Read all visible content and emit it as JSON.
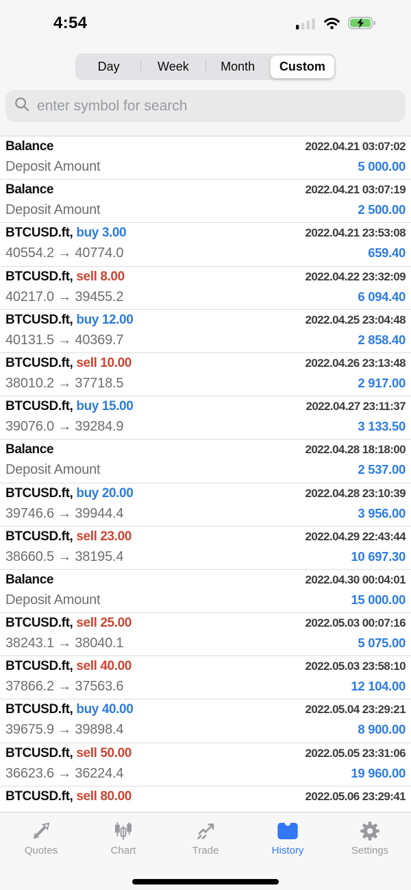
{
  "status_bar": {
    "time": "4:54",
    "icons": [
      "cellular-signal-icon",
      "wifi-icon",
      "battery-charging-icon"
    ]
  },
  "segmented": {
    "options": [
      "Day",
      "Week",
      "Month",
      "Custom"
    ],
    "selected": "Custom"
  },
  "search": {
    "placeholder": "enter symbol for search"
  },
  "history": {
    "rows": [
      {
        "kind": "balance",
        "title": "Balance",
        "datetime": "2022.04.21 03:07:02",
        "detail": "Deposit Amount",
        "amount": "5 000.00"
      },
      {
        "kind": "balance",
        "title": "Balance",
        "datetime": "2022.04.21 03:07:19",
        "detail": "Deposit Amount",
        "amount": "2 500.00"
      },
      {
        "kind": "trade",
        "title": "BTCUSD.ft,",
        "side": "buy",
        "action": "buy 3.00",
        "datetime": "2022.04.21 23:53:08",
        "detail": "40554.2 → 40774.0",
        "amount": "659.40"
      },
      {
        "kind": "trade",
        "title": "BTCUSD.ft,",
        "side": "sell",
        "action": "sell 8.00",
        "datetime": "2022.04.22 23:32:09",
        "detail": "40217.0 → 39455.2",
        "amount": "6 094.40"
      },
      {
        "kind": "trade",
        "title": "BTCUSD.ft,",
        "side": "buy",
        "action": "buy 12.00",
        "datetime": "2022.04.25 23:04:48",
        "detail": "40131.5 → 40369.7",
        "amount": "2 858.40"
      },
      {
        "kind": "trade",
        "title": "BTCUSD.ft,",
        "side": "sell",
        "action": "sell 10.00",
        "datetime": "2022.04.26 23:13:48",
        "detail": "38010.2 → 37718.5",
        "amount": "2 917.00"
      },
      {
        "kind": "trade",
        "title": "BTCUSD.ft,",
        "side": "buy",
        "action": "buy 15.00",
        "datetime": "2022.04.27 23:11:37",
        "detail": "39076.0 → 39284.9",
        "amount": "3 133.50"
      },
      {
        "kind": "balance",
        "title": "Balance",
        "datetime": "2022.04.28 18:18:00",
        "detail": "Deposit Amount",
        "amount": "2 537.00"
      },
      {
        "kind": "trade",
        "title": "BTCUSD.ft,",
        "side": "buy",
        "action": "buy 20.00",
        "datetime": "2022.04.28 23:10:39",
        "detail": "39746.6 → 39944.4",
        "amount": "3 956.00"
      },
      {
        "kind": "trade",
        "title": "BTCUSD.ft,",
        "side": "sell",
        "action": "sell 23.00",
        "datetime": "2022.04.29 22:43:44",
        "detail": "38660.5 → 38195.4",
        "amount": "10 697.30"
      },
      {
        "kind": "balance",
        "title": "Balance",
        "datetime": "2022.04.30 00:04:01",
        "detail": "Deposit Amount",
        "amount": "15 000.00"
      },
      {
        "kind": "trade",
        "title": "BTCUSD.ft,",
        "side": "sell",
        "action": "sell 25.00",
        "datetime": "2022.05.03 00:07:16",
        "detail": "38243.1 → 38040.1",
        "amount": "5 075.00"
      },
      {
        "kind": "trade",
        "title": "BTCUSD.ft,",
        "side": "sell",
        "action": "sell 40.00",
        "datetime": "2022.05.03 23:58:10",
        "detail": "37866.2 → 37563.6",
        "amount": "12 104.00"
      },
      {
        "kind": "trade",
        "title": "BTCUSD.ft,",
        "side": "buy",
        "action": "buy 40.00",
        "datetime": "2022.05.04 23:29:21",
        "detail": "39675.9 → 39898.4",
        "amount": "8 900.00"
      },
      {
        "kind": "trade",
        "title": "BTCUSD.ft,",
        "side": "sell",
        "action": "sell 50.00",
        "datetime": "2022.05.05 23:31:06",
        "detail": "36623.6 → 36224.4",
        "amount": "19 960.00"
      },
      {
        "kind": "trade",
        "title": "BTCUSD.ft,",
        "side": "sell",
        "action": "sell 80.00",
        "datetime": "2022.05.06 23:29:41"
      }
    ]
  },
  "tab_bar": {
    "items": [
      {
        "label": "Quotes",
        "icon": "quotes-arrows-icon"
      },
      {
        "label": "Chart",
        "icon": "candlestick-chart-icon"
      },
      {
        "label": "Trade",
        "icon": "trend-arrow-icon"
      },
      {
        "label": "History",
        "icon": "inbox-history-icon"
      },
      {
        "label": "Settings",
        "icon": "gear-icon"
      }
    ],
    "active": "History"
  },
  "colors": {
    "buy_blue": "#2d7ce0",
    "sell_red": "#ce4431",
    "amount_blue": "#2d7ce0",
    "active_tab_blue": "#3377f5",
    "battery_green": "#6fd168"
  }
}
